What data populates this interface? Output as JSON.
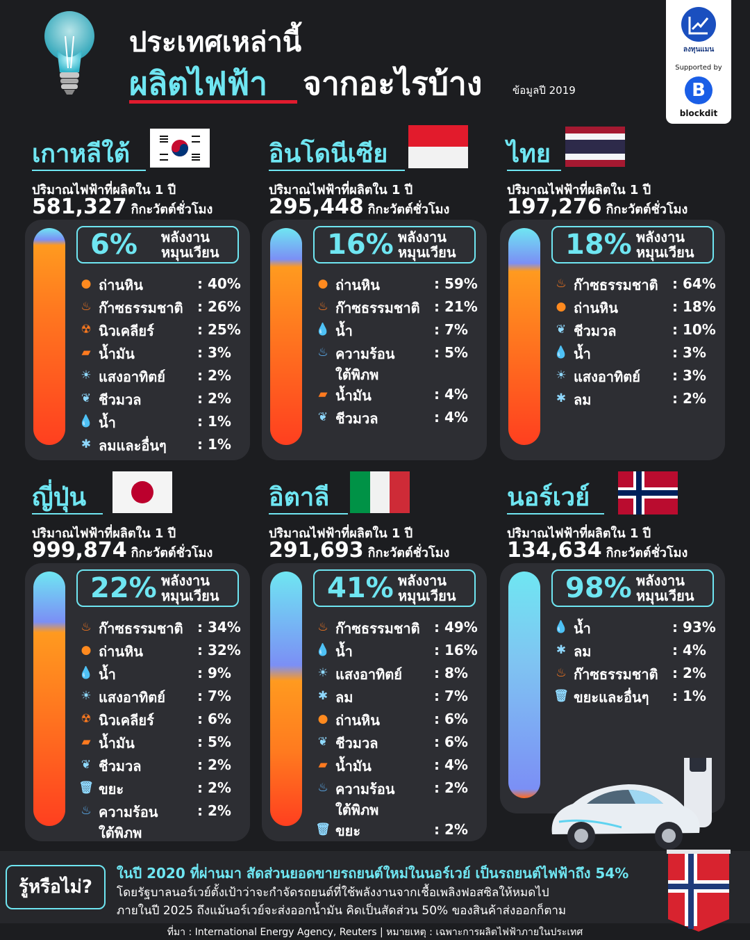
{
  "header": {
    "title_line1": "ประเทศเหล่านี้",
    "title_highlight": "ผลิตไฟฟ้า",
    "title_rest": "จากอะไรบ้าง",
    "data_year": "ข้อมูลปี 2019"
  },
  "logo": {
    "brand": "ลงทุนแมน",
    "supported_by": "Supported by",
    "partner": "blockdit",
    "partner_letter": "B"
  },
  "common": {
    "produced_label": "ปริมาณไฟฟ้าที่ผลิตใน 1 ปี",
    "unit": "กิกะวัตต์ชั่วโมง",
    "renewable_label_1": "พลังงาน",
    "renewable_label_2": "หมุนเวียน"
  },
  "colors": {
    "accent": "#6fe6f2",
    "card": "#2d2e33",
    "background": "#1c1d20",
    "fossil": "#ff5a1f",
    "renewable": "#7b8ff5"
  },
  "countries": [
    {
      "name": "เกาหลีใต้",
      "flag": "south-korea",
      "production": "581,327",
      "renewable_pct": "6%",
      "renewable_share": 0.06,
      "sources": [
        {
          "icon": "coal-icon",
          "name": "ถ่านหิน",
          "pct": ": 40%"
        },
        {
          "icon": "gas-icon",
          "name": "ก๊าซธรรมชาติ",
          "pct": ": 26%"
        },
        {
          "icon": "nuclear-icon",
          "name": "นิวเคลียร์",
          "pct": ": 25%"
        },
        {
          "icon": "oil-icon",
          "name": "น้ำมัน",
          "pct": ": 3%"
        },
        {
          "icon": "solar-icon",
          "name": "แสงอาทิตย์",
          "pct": ": 2%"
        },
        {
          "icon": "biomass-icon",
          "name": "ชีวมวล",
          "pct": ": 2%"
        },
        {
          "icon": "water-icon",
          "name": "น้ำ",
          "pct": ": 1%"
        },
        {
          "icon": "wind-icon",
          "name": "ลมและอื่นๆ",
          "pct": ": 1%"
        }
      ]
    },
    {
      "name": "อินโดนีเซีย",
      "flag": "indonesia",
      "production": "295,448",
      "renewable_pct": "16%",
      "renewable_share": 0.16,
      "sources": [
        {
          "icon": "coal-icon",
          "name": "ถ่านหิน",
          "pct": ": 59%"
        },
        {
          "icon": "gas-icon",
          "name": "ก๊าซธรรมชาติ",
          "pct": ": 21%"
        },
        {
          "icon": "water-icon",
          "name": "น้ำ",
          "pct": ": 7%"
        },
        {
          "icon": "geothermal-icon",
          "name": "ความร้อน",
          "name2": "ใต้พิภพ",
          "pct": ": 5%"
        },
        {
          "icon": "oil-icon",
          "name": "น้ำมัน",
          "pct": ": 4%"
        },
        {
          "icon": "biomass-icon",
          "name": "ชีวมวล",
          "pct": ": 4%"
        }
      ]
    },
    {
      "name": "ไทย",
      "flag": "thailand",
      "production": "197,276",
      "renewable_pct": "18%",
      "renewable_share": 0.18,
      "sources": [
        {
          "icon": "gas-icon",
          "name": "ก๊าซธรรมชาติ",
          "pct": ": 64%"
        },
        {
          "icon": "coal-icon",
          "name": "ถ่านหิน",
          "pct": ": 18%"
        },
        {
          "icon": "biomass-icon",
          "name": "ชีวมวล",
          "pct": ": 10%"
        },
        {
          "icon": "water-icon",
          "name": "น้ำ",
          "pct": ": 3%"
        },
        {
          "icon": "solar-icon",
          "name": "แสงอาทิตย์",
          "pct": ": 3%"
        },
        {
          "icon": "wind-icon",
          "name": "ลม",
          "pct": ": 2%"
        }
      ]
    },
    {
      "name": "ญี่ปุ่น",
      "flag": "japan",
      "production": "999,874",
      "renewable_pct": "22%",
      "renewable_share": 0.22,
      "sources": [
        {
          "icon": "gas-icon",
          "name": "ก๊าซธรรมชาติ",
          "pct": ": 34%"
        },
        {
          "icon": "coal-icon",
          "name": "ถ่านหิน",
          "pct": ": 32%"
        },
        {
          "icon": "water-icon",
          "name": "น้ำ",
          "pct": ": 9%"
        },
        {
          "icon": "solar-icon",
          "name": "แสงอาทิตย์",
          "pct": ": 7%"
        },
        {
          "icon": "nuclear-icon",
          "name": "นิวเคลียร์",
          "pct": ": 6%"
        },
        {
          "icon": "oil-icon",
          "name": "น้ำมัน",
          "pct": ": 5%"
        },
        {
          "icon": "biomass-icon",
          "name": "ชีวมวล",
          "pct": ": 2%"
        },
        {
          "icon": "waste-icon",
          "name": "ขยะ",
          "pct": ": 2%"
        },
        {
          "icon": "geothermal-icon",
          "name": "ความร้อน",
          "name2": "ใต้พิภพ",
          "pct": ": 2%"
        }
      ]
    },
    {
      "name": "อิตาลี",
      "flag": "italy",
      "production": "291,693",
      "renewable_pct": "41%",
      "renewable_share": 0.41,
      "sources": [
        {
          "icon": "gas-icon",
          "name": "ก๊าซธรรมชาติ",
          "pct": ": 49%"
        },
        {
          "icon": "water-icon",
          "name": "น้ำ",
          "pct": ": 16%"
        },
        {
          "icon": "solar-icon",
          "name": "แสงอาทิตย์",
          "pct": ": 8%"
        },
        {
          "icon": "wind-icon",
          "name": "ลม",
          "pct": ": 7%"
        },
        {
          "icon": "coal-icon",
          "name": "ถ่านหิน",
          "pct": ": 6%"
        },
        {
          "icon": "biomass-icon",
          "name": "ชีวมวล",
          "pct": ": 6%"
        },
        {
          "icon": "oil-icon",
          "name": "น้ำมัน",
          "pct": ": 4%"
        },
        {
          "icon": "geothermal-icon",
          "name": "ความร้อน",
          "name2": "ใต้พิภพ",
          "pct": ": 2%"
        },
        {
          "icon": "waste-icon",
          "name": "ขยะ",
          "pct": ": 2%"
        }
      ]
    },
    {
      "name": "นอร์เวย์",
      "flag": "norway",
      "production": "134,634",
      "renewable_pct": "98%",
      "renewable_share": 0.98,
      "sources": [
        {
          "icon": "water-icon",
          "name": "น้ำ",
          "pct": ": 93%"
        },
        {
          "icon": "wind-icon",
          "name": "ลม",
          "pct": ": 4%"
        },
        {
          "icon": "gas-icon",
          "name": "ก๊าซธรรมชาติ",
          "pct": ": 2%"
        },
        {
          "icon": "waste-icon",
          "name": "ขยะและอื่นๆ",
          "pct": ": 1%"
        }
      ]
    }
  ],
  "did_you_know": {
    "label": "รู้หรือไม่?",
    "headline": "ในปี 2020 ที่ผ่านมา สัดส่วนยอดขายรถยนต์ใหม่ในนอร์เวย์ เป็นรถยนต์ไฟฟ้าถึง 54%",
    "line2": "โดยรัฐบาลนอร์เวย์ตั้งเป้าว่าจะกำจัดรถยนต์ที่ใช้พลังงานจากเชื้อเพลิงฟอสซิลให้หมดไป",
    "line3": "ภายในปี 2025 ถึงแม้นอร์เวย์จะส่งออกน้ำมัน คิดเป็นสัดส่วน 50% ของสินค้าส่งออกก็ตาม"
  },
  "footer": {
    "source": "ที่มา : International Energy Agency, Reuters   |   หมายเหตุ : เฉพาะการผลิตไฟฟ้าภายในประเทศ"
  }
}
